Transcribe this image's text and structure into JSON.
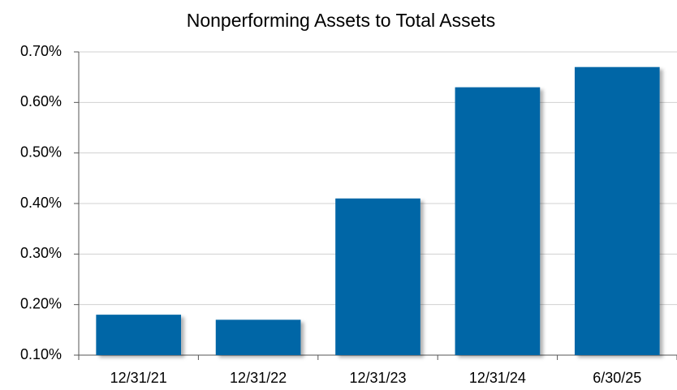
{
  "chart_data": {
    "type": "bar",
    "title": "Nonperforming Assets to Total Assets",
    "categories": [
      "12/31/21",
      "12/31/22",
      "12/31/23",
      "12/31/24",
      "6/30/25"
    ],
    "values": [
      0.18,
      0.17,
      0.41,
      0.63,
      0.67
    ],
    "color": "#0066a6",
    "ylim": [
      0.1,
      0.7
    ],
    "yticks": [
      {
        "value": 0.1,
        "label": "0.10%"
      },
      {
        "value": 0.2,
        "label": "0.20%"
      },
      {
        "value": 0.3,
        "label": "0.30%"
      },
      {
        "value": 0.4,
        "label": "0.40%"
      },
      {
        "value": 0.5,
        "label": "0.50%"
      },
      {
        "value": 0.6,
        "label": "0.60%"
      },
      {
        "value": 0.7,
        "label": "0.70%"
      }
    ],
    "grid": true
  }
}
